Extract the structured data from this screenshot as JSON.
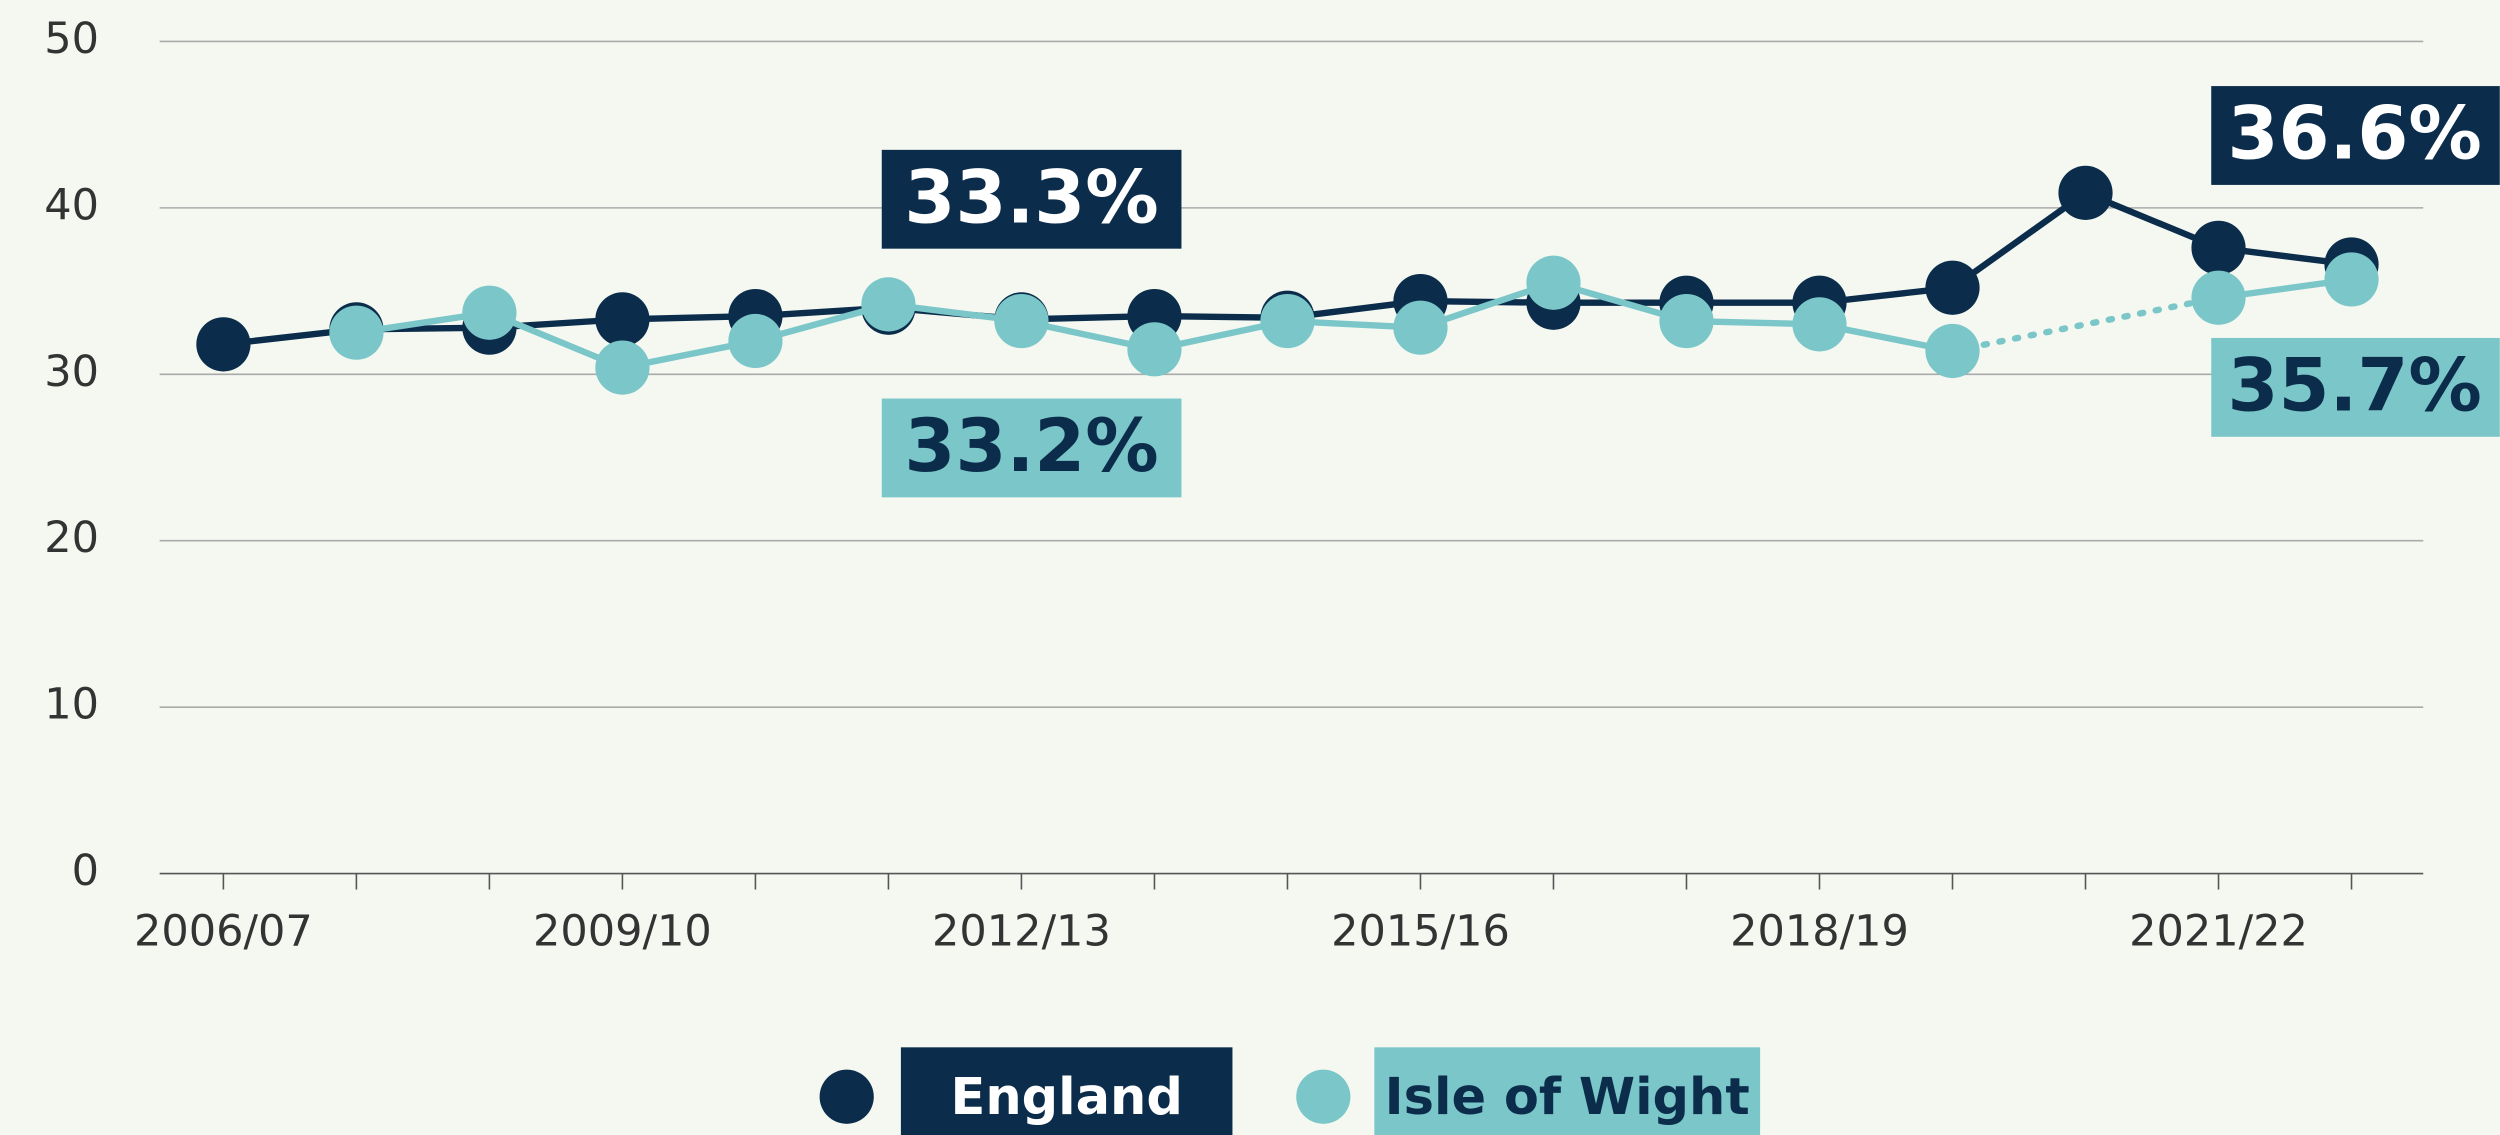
{
  "chart_data": {
    "type": "line",
    "categories": [
      "2006/07",
      null,
      null,
      "2009/10",
      null,
      null,
      "2012/13",
      null,
      null,
      "2015/16",
      null,
      null,
      "2018/19",
      null,
      null,
      "2021/22",
      null
    ],
    "series": [
      {
        "name": "England",
        "color": "#0b2d4b",
        "values": [
          31.8,
          32.7,
          32.8,
          33.3,
          33.5,
          34.0,
          33.3,
          33.5,
          33.4,
          34.4,
          34.3,
          34.3,
          34.3,
          35.2,
          40.9,
          37.6,
          36.6
        ]
      },
      {
        "name": "Isle of Wight",
        "color": "#7bc6c8",
        "values": [
          null,
          32.5,
          33.7,
          30.4,
          32.0,
          34.2,
          33.2,
          31.5,
          33.2,
          32.8,
          35.5,
          33.2,
          33.0,
          31.4,
          null,
          34.6,
          35.7
        ]
      }
    ],
    "annotations": [
      "33.3%",
      "33.2%",
      "36.6%",
      "35.7%"
    ],
    "ylim": [
      0,
      50
    ],
    "yticks": [
      0,
      10,
      20,
      30,
      40,
      50
    ],
    "grid": true
  }
}
